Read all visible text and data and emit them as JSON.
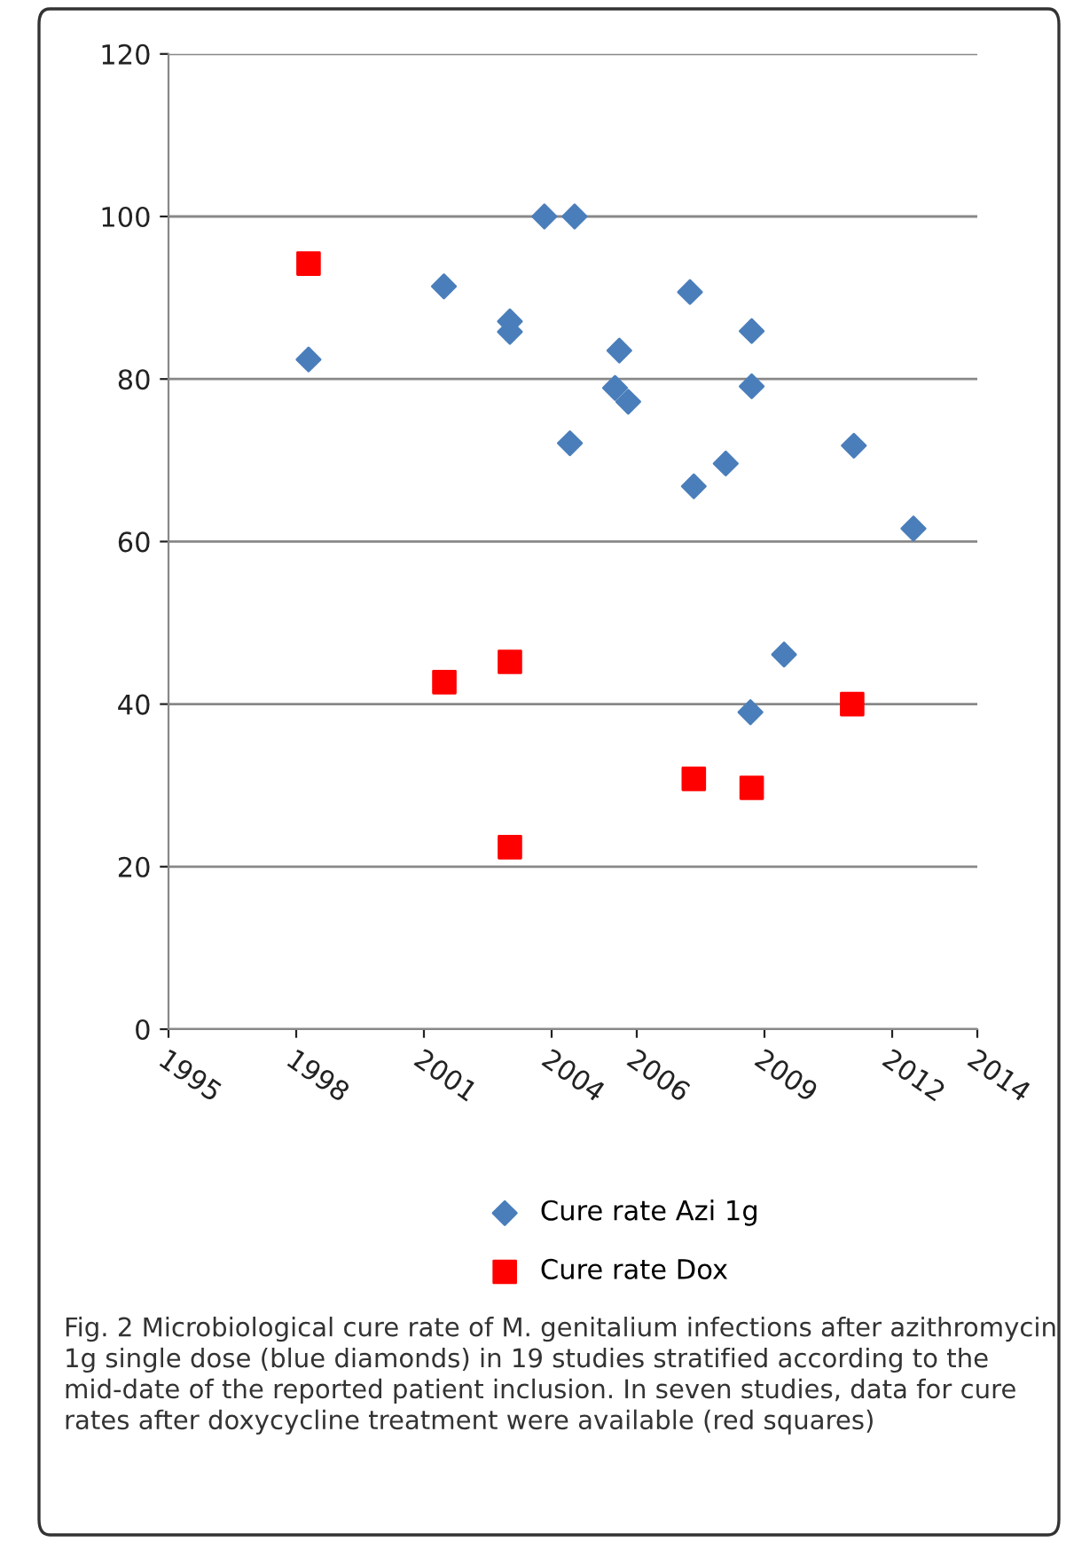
{
  "chart_data": {
    "type": "scatter",
    "series": [
      {
        "name": "Cure rate Azi 1g",
        "color": "#4a7ebb",
        "marker": "diamond",
        "x": [
          1998.29,
          2001.47,
          2003.02,
          2003.02,
          2003.83,
          2004.54,
          2004.43,
          2005.59,
          2005.49,
          2005.8,
          2007.25,
          2007.34,
          2008.09,
          2008.7,
          2008.7,
          2011.1,
          2012.5,
          2009.46,
          2008.67
        ],
        "values": [
          82.4,
          91.4,
          87.1,
          85.8,
          100,
          100,
          72.1,
          83.5,
          78.9,
          77.2,
          90.7,
          66.8,
          69.6,
          85.9,
          79.1,
          71.8,
          61.6,
          46.1,
          39.0
        ]
      },
      {
        "name": "Cure rate Dox",
        "color": "#ff0000",
        "marker": "square",
        "x": [
          1998.29,
          2001.48,
          2003.02,
          2003.02,
          2007.34,
          2008.7,
          2011.06
        ],
        "values": [
          94.2,
          42.7,
          45.2,
          22.4,
          30.8,
          29.7,
          40.0
        ]
      }
    ],
    "xlim": [
      1995,
      2014
    ],
    "xticks": [
      1995,
      1998,
      2001,
      2004,
      2006,
      2009,
      2012,
      2014
    ],
    "ylim": [
      0,
      120
    ],
    "yticks": [
      0,
      20,
      40,
      60,
      80,
      100,
      120
    ],
    "grid": "y",
    "legend": "bottom",
    "annotations": [
      "Fig. 2 Microbiological cure rate of M. genitalium infections after azithromycin 1g single dose (blue diamonds) in 19 studies stratified according to the mid-date of the reported patient inclusion. In seven studies, data for cure rates after doxycycline treatment were available (red squares)"
    ]
  }
}
